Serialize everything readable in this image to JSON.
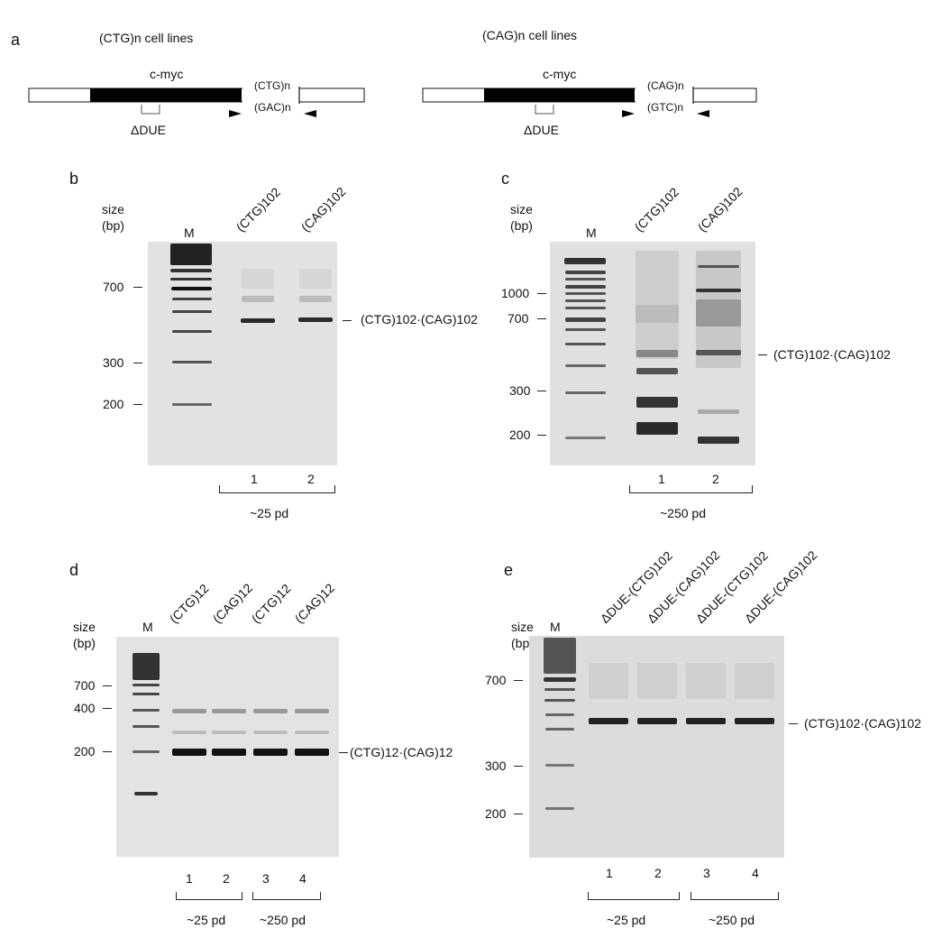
{
  "panels": {
    "a": {
      "letter": "a",
      "left_title": "(CTG)n cell lines",
      "right_title": "(CAG)n cell lines",
      "gene_label": "c-myc",
      "left_top_repeat": "(CTG)n",
      "left_bottom_repeat": "(GAC)n",
      "right_top_repeat": "(CAG)n",
      "right_bottom_repeat": "(GTC)n",
      "due_label": "ΔDUE"
    },
    "b": {
      "letter": "b",
      "size_label": "size",
      "bp_label": "(bp)",
      "marker": "M",
      "lanes": [
        "(CTG)102",
        "(CAG)102"
      ],
      "ticks": [
        "700",
        "300",
        "200"
      ],
      "product": "(CTG)102·(CAG)102",
      "lane_numbers": [
        "1",
        "2"
      ],
      "groups": [
        "~25 pd"
      ]
    },
    "c": {
      "letter": "c",
      "size_label": "size",
      "bp_label": "(bp)",
      "marker": "M",
      "lanes": [
        "(CTG)102",
        "(CAG)102"
      ],
      "ticks": [
        "1000",
        "700",
        "300",
        "200"
      ],
      "product": "(CTG)102·(CAG)102",
      "lane_numbers": [
        "1",
        "2"
      ],
      "groups": [
        "~250 pd"
      ]
    },
    "d": {
      "letter": "d",
      "size_label": "size",
      "bp_label": "(bp)",
      "marker": "M",
      "lanes": [
        "(CTG)12",
        "(CAG)12",
        "(CTG)12",
        "(CAG)12"
      ],
      "ticks": [
        "700",
        "400",
        "200"
      ],
      "product": "(CTG)12·(CAG)12",
      "lane_numbers": [
        "1",
        "2",
        "3",
        "4"
      ],
      "groups": [
        "~25 pd",
        "~250 pd"
      ]
    },
    "e": {
      "letter": "e",
      "size_label": "size",
      "bp_label": "(bp)",
      "marker": "M",
      "lanes": [
        "ΔDUE-(CTG)102",
        "ΔDUE-(CAG)102",
        "ΔDUE-(CTG)102",
        "ΔDUE-(CAG)102"
      ],
      "ticks": [
        "700",
        "300",
        "200"
      ],
      "product": "(CTG)102·(CAG)102",
      "lane_numbers": [
        "1",
        "2",
        "3",
        "4"
      ],
      "groups": [
        "~25 pd",
        "~250 pd"
      ]
    }
  }
}
